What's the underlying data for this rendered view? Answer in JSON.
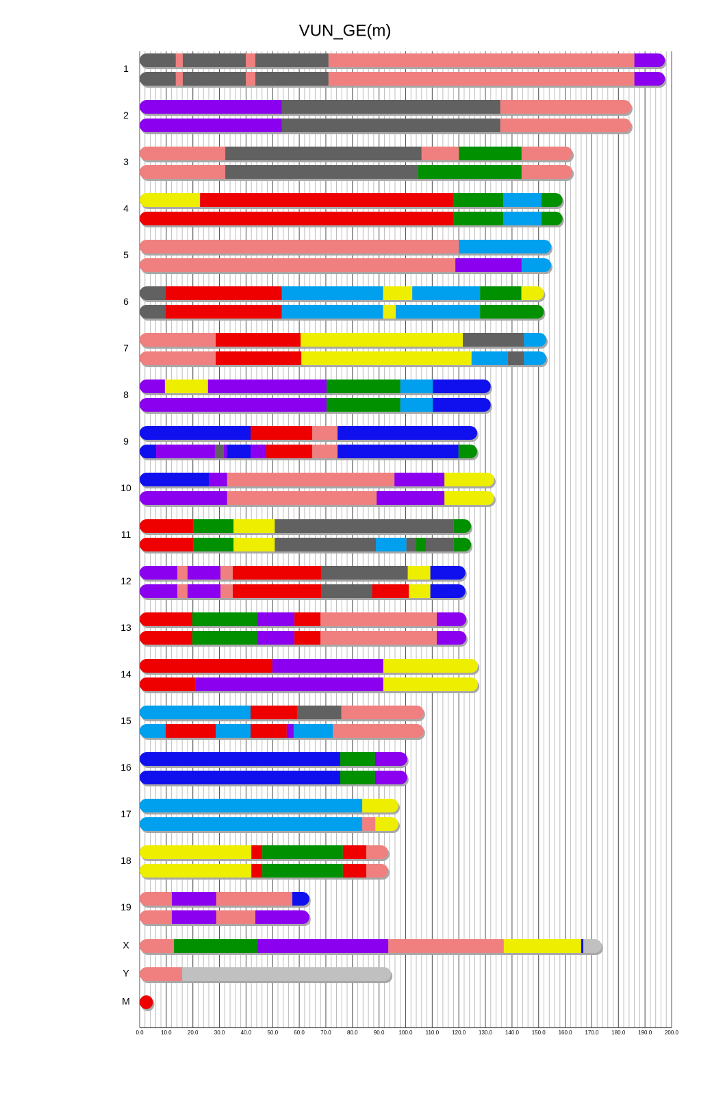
{
  "chart_data": {
    "type": "chromosome",
    "title": "VUN_GE(m)",
    "xlim": [
      0,
      200
    ],
    "xticks": [
      {
        "value": 0,
        "label": "0.0"
      },
      {
        "value": 10,
        "label": "10.0"
      },
      {
        "value": 20,
        "label": "20.0"
      },
      {
        "value": 30,
        "label": "30.0"
      },
      {
        "value": 40,
        "label": "40.0"
      },
      {
        "value": 50,
        "label": "50.0"
      },
      {
        "value": 60,
        "label": "60.0"
      },
      {
        "value": 70,
        "label": "70.0"
      },
      {
        "value": 80,
        "label": "80.0"
      },
      {
        "value": 90,
        "label": "90.0"
      },
      {
        "value": 100,
        "label": "100.0"
      },
      {
        "value": 110,
        "label": "110.0"
      },
      {
        "value": 120,
        "label": "120.0"
      },
      {
        "value": 130,
        "label": "130.0"
      },
      {
        "value": 140,
        "label": "140.0"
      },
      {
        "value": 150,
        "label": "150.0"
      },
      {
        "value": 160,
        "label": "160.0"
      },
      {
        "value": 170,
        "label": "170.0"
      },
      {
        "value": 180,
        "label": "180.0"
      },
      {
        "value": 190,
        "label": "190.0"
      },
      {
        "value": 200,
        "label": "200.0"
      }
    ],
    "xminor_step": 2,
    "grid": true,
    "chromosomes": [
      {
        "name": "1",
        "haplotypes": [
          {
            "breaks": [
              0,
              13.6,
              16.2,
              39.9,
              43.5,
              71,
              186,
              197.5
            ],
            "colors": [
              "#616161",
              "#f08080",
              "#616161",
              "#f08080",
              "#616161",
              "#f08080",
              "#8b00ee"
            ]
          },
          {
            "breaks": [
              0,
              13.6,
              16.2,
              39.9,
              43.5,
              71,
              186,
              197.5
            ],
            "colors": [
              "#616161",
              "#f08080",
              "#616161",
              "#f08080",
              "#616161",
              "#f08080",
              "#8b00ee"
            ]
          }
        ]
      },
      {
        "name": "2",
        "haplotypes": [
          {
            "breaks": [
              0,
              53.5,
              135.6,
              184.8
            ],
            "colors": [
              "#8b00ee",
              "#616161",
              "#f08080"
            ]
          },
          {
            "breaks": [
              0,
              53.5,
              135.6,
              184.8
            ],
            "colors": [
              "#8b00ee",
              "#616161",
              "#f08080"
            ]
          }
        ]
      },
      {
        "name": "3",
        "haplotypes": [
          {
            "breaks": [
              0,
              32.2,
              106,
              120,
              143.6,
              162.7
            ],
            "colors": [
              "#f08080",
              "#616161",
              "#f08080",
              "#009000",
              "#f08080"
            ]
          },
          {
            "breaks": [
              0,
              32.2,
              104.7,
              143.6,
              162.7
            ],
            "colors": [
              "#f08080",
              "#616161",
              "#009000",
              "#f08080"
            ]
          }
        ]
      },
      {
        "name": "4",
        "haplotypes": [
          {
            "breaks": [
              0,
              22.7,
              118.1,
              136.7,
              151.1,
              159
            ],
            "colors": [
              "#eeee00",
              "#ee0000",
              "#009000",
              "#00a0ee",
              "#009000"
            ]
          },
          {
            "breaks": [
              0,
              118.1,
              136.7,
              151.1,
              159
            ],
            "colors": [
              "#ee0000",
              "#009000",
              "#00a0ee",
              "#009000"
            ]
          }
        ]
      },
      {
        "name": "5",
        "haplotypes": [
          {
            "breaks": [
              0,
              120,
              154.7
            ],
            "colors": [
              "#f08080",
              "#00a0ee"
            ]
          },
          {
            "breaks": [
              0,
              118.7,
              143.6,
              154.7
            ],
            "colors": [
              "#f08080",
              "#8b00ee",
              "#00a0ee"
            ]
          }
        ]
      },
      {
        "name": "6",
        "haplotypes": [
          {
            "breaks": [
              0,
              9.8,
              53.4,
              91.5,
              102.5,
              128,
              143.5,
              152
            ],
            "colors": [
              "#616161",
              "#ee0000",
              "#00a0ee",
              "#eeee00",
              "#00a0ee",
              "#009000",
              "#eeee00"
            ]
          },
          {
            "breaks": [
              0,
              9.8,
              53.4,
              91.5,
              96.3,
              128,
              152
            ],
            "colors": [
              "#616161",
              "#ee0000",
              "#00a0ee",
              "#eeee00",
              "#00a0ee",
              "#009000"
            ]
          }
        ]
      },
      {
        "name": "7",
        "haplotypes": [
          {
            "breaks": [
              0,
              28.6,
              60.5,
              121.5,
              144.5,
              152.9
            ],
            "colors": [
              "#f08080",
              "#ee0000",
              "#eeee00",
              "#616161",
              "#00a0ee"
            ]
          },
          {
            "breaks": [
              0,
              28.6,
              60.8,
              124.8,
              138.5,
              144.5,
              152.9
            ],
            "colors": [
              "#f08080",
              "#ee0000",
              "#eeee00",
              "#00a0ee",
              "#616161",
              "#00a0ee"
            ]
          }
        ]
      },
      {
        "name": "8",
        "haplotypes": [
          {
            "breaks": [
              0,
              9.5,
              25.7,
              70.3,
              98,
              110.2,
              132
            ],
            "colors": [
              "#8b00ee",
              "#eeee00",
              "#8b00ee",
              "#009000",
              "#00a0ee",
              "#1010ee"
            ]
          },
          {
            "breaks": [
              0,
              70.3,
              98,
              110.2,
              132
            ],
            "colors": [
              "#8b00ee",
              "#009000",
              "#00a0ee",
              "#1010ee"
            ]
          }
        ]
      },
      {
        "name": "9",
        "haplotypes": [
          {
            "breaks": [
              0,
              41.7,
              64.9,
              74.4,
              126.9
            ],
            "colors": [
              "#1010ee",
              "#ee0000",
              "#f08080",
              "#1010ee"
            ]
          },
          {
            "breaks": [
              0,
              6.2,
              28.3,
              31.6,
              32.8,
              41.7,
              47.6,
              64.9,
              74.4,
              119.9,
              126.9
            ],
            "colors": [
              "#1010ee",
              "#8b00ee",
              "#616161",
              "#8b00ee",
              "#1010ee",
              "#8b00ee",
              "#ee0000",
              "#f08080",
              "#1010ee",
              "#009000"
            ]
          }
        ]
      },
      {
        "name": "10",
        "haplotypes": [
          {
            "breaks": [
              0,
              26,
              32.9,
              95.8,
              114.6,
              133.3
            ],
            "colors": [
              "#1010ee",
              "#8b00ee",
              "#f08080",
              "#8b00ee",
              "#eeee00"
            ]
          },
          {
            "breaks": [
              0,
              32.9,
              89.1,
              114.6,
              133.3
            ],
            "colors": [
              "#8b00ee",
              "#f08080",
              "#8b00ee",
              "#eeee00"
            ]
          }
        ]
      },
      {
        "name": "11",
        "haplotypes": [
          {
            "breaks": [
              0,
              20.1,
              35.3,
              50.8,
              118.1,
              124.6
            ],
            "colors": [
              "#ee0000",
              "#009000",
              "#eeee00",
              "#616161",
              "#009000"
            ]
          },
          {
            "breaks": [
              0,
              20.1,
              35.3,
              50.8,
              88.8,
              100.3,
              104,
              107.6,
              118.1,
              124.6
            ],
            "colors": [
              "#ee0000",
              "#009000",
              "#eeee00",
              "#616161",
              "#00a0ee",
              "#616161",
              "#009000",
              "#616161",
              "#009000"
            ]
          }
        ]
      },
      {
        "name": "12",
        "haplotypes": [
          {
            "breaks": [
              0,
              14.2,
              18,
              30.4,
              35,
              68.2,
              100.8,
              109.3,
              122.5
            ],
            "colors": [
              "#8b00ee",
              "#f08080",
              "#8b00ee",
              "#f08080",
              "#ee0000",
              "#616161",
              "#eeee00",
              "#1010ee"
            ]
          },
          {
            "breaks": [
              0,
              14.2,
              18,
              30.4,
              35,
              68.2,
              87.4,
              101.2,
              109.3,
              122.5
            ],
            "colors": [
              "#8b00ee",
              "#f08080",
              "#8b00ee",
              "#f08080",
              "#ee0000",
              "#616161",
              "#ee0000",
              "#eeee00",
              "#1010ee"
            ]
          }
        ]
      },
      {
        "name": "13",
        "haplotypes": [
          {
            "breaks": [
              0,
              19.8,
              44.3,
              58.2,
              68,
              111.7,
              122.8
            ],
            "colors": [
              "#ee0000",
              "#009000",
              "#8b00ee",
              "#ee0000",
              "#f08080",
              "#8b00ee"
            ]
          },
          {
            "breaks": [
              0,
              19.8,
              44.3,
              58.2,
              68,
              111.7,
              122.8
            ],
            "colors": [
              "#ee0000",
              "#009000",
              "#8b00ee",
              "#ee0000",
              "#f08080",
              "#8b00ee"
            ]
          }
        ]
      },
      {
        "name": "14",
        "haplotypes": [
          {
            "breaks": [
              0,
              49.9,
              91.6,
              127.2
            ],
            "colors": [
              "#ee0000",
              "#8b00ee",
              "#eeee00"
            ]
          },
          {
            "breaks": [
              0,
              20.9,
              91.6,
              127.2
            ],
            "colors": [
              "#ee0000",
              "#8b00ee",
              "#eeee00"
            ]
          }
        ]
      },
      {
        "name": "15",
        "haplotypes": [
          {
            "breaks": [
              0,
              41.7,
              59.2,
              75.8,
              106.8
            ],
            "colors": [
              "#00a0ee",
              "#ee0000",
              "#616161",
              "#f08080"
            ]
          },
          {
            "breaks": [
              0,
              9.8,
              28.6,
              41.7,
              55.3,
              57.9,
              72.6,
              106.8
            ],
            "colors": [
              "#00a0ee",
              "#ee0000",
              "#00a0ee",
              "#ee0000",
              "#8b00ee",
              "#00a0ee",
              "#f08080"
            ]
          }
        ]
      },
      {
        "name": "16",
        "haplotypes": [
          {
            "breaks": [
              0,
              75.4,
              88.5,
              100.6
            ],
            "colors": [
              "#1010ee",
              "#009000",
              "#8b00ee"
            ]
          },
          {
            "breaks": [
              0,
              75.4,
              88.5,
              100.6
            ],
            "colors": [
              "#1010ee",
              "#009000",
              "#8b00ee"
            ]
          }
        ]
      },
      {
        "name": "17",
        "haplotypes": [
          {
            "breaks": [
              0,
              83.7,
              97.3
            ],
            "colors": [
              "#00a0ee",
              "#eeee00"
            ]
          },
          {
            "breaks": [
              0,
              83.7,
              88.6,
              97.3
            ],
            "colors": [
              "#00a0ee",
              "#f08080",
              "#eeee00"
            ]
          }
        ]
      },
      {
        "name": "18",
        "haplotypes": [
          {
            "breaks": [
              0,
              42,
              46.1,
              76.4,
              85.2,
              93.4
            ],
            "colors": [
              "#eeee00",
              "#ee0000",
              "#009000",
              "#ee0000",
              "#f08080"
            ]
          },
          {
            "breaks": [
              0,
              42,
              46.1,
              76.4,
              85.2,
              93.4
            ],
            "colors": [
              "#eeee00",
              "#ee0000",
              "#009000",
              "#ee0000",
              "#f08080"
            ]
          }
        ]
      },
      {
        "name": "19",
        "haplotypes": [
          {
            "breaks": [
              0,
              12.1,
              28.8,
              57.4,
              63.8
            ],
            "colors": [
              "#f08080",
              "#8b00ee",
              "#f08080",
              "#1010ee"
            ]
          },
          {
            "breaks": [
              0,
              12.1,
              28.8,
              43.5,
              63.8
            ],
            "colors": [
              "#f08080",
              "#8b00ee",
              "#f08080",
              "#8b00ee"
            ]
          }
        ]
      },
      {
        "name": "X",
        "haplotypes": [
          {
            "breaks": [
              0,
              12.9,
              44.3,
              93.5,
              136.9,
              166,
              166.8,
              173.7
            ],
            "colors": [
              "#f08080",
              "#009000",
              "#8b00ee",
              "#f08080",
              "#eeee00",
              "#1010ee",
              "#c0c0c0"
            ]
          }
        ]
      },
      {
        "name": "Y",
        "haplotypes": [
          {
            "breaks": [
              0,
              16,
              94.5
            ],
            "colors": [
              "#f08080",
              "#c0c0c0"
            ]
          }
        ]
      },
      {
        "name": "M",
        "haplotypes": [
          {
            "breaks": [
              0,
              5
            ],
            "colors": [
              "#ee0000"
            ]
          }
        ]
      }
    ]
  }
}
